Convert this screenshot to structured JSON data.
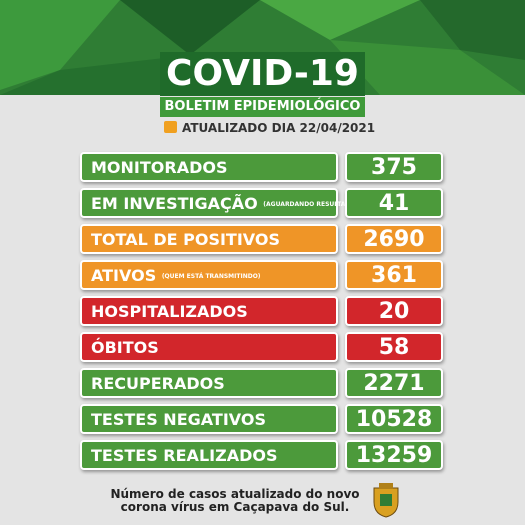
{
  "header": {
    "title": "COVID-19",
    "subtitle": "BOLETIM EPIDEMIOLÓGICO",
    "updated": "ATUALIZADO DIA 22/04/2021"
  },
  "rows": [
    {
      "label": "MONITORADOS",
      "value": 375,
      "color": "#4c9a3b"
    },
    {
      "label": "EM INVESTIGAÇÃO",
      "note": "(AGUARDANDO RESULTADO)",
      "value": 41,
      "color": "#4c9a3b"
    },
    {
      "label": "TOTAL DE POSITIVOS",
      "value": 2690,
      "color": "#ef9527"
    },
    {
      "label": "ATIVOS",
      "note": "(QUEM ESTÁ TRANSMITINDO)",
      "value": 361,
      "color": "#ef9527"
    },
    {
      "label": "HOSPITALIZADOS",
      "value": 20,
      "color": "#d2262b"
    },
    {
      "label": "ÓBITOS",
      "value": 58,
      "color": "#d2262b"
    },
    {
      "label": "RECUPERADOS",
      "value": 2271,
      "color": "#4c9a3b"
    },
    {
      "label": "TESTES NEGATIVOS",
      "value": 10528,
      "color": "#4c9a3b"
    },
    {
      "label": "TESTES REALIZADOS",
      "value": 13259,
      "color": "#4c9a3b"
    }
  ],
  "footer": {
    "lines": [
      "Número de casos atualizado do novo",
      "corona vírus em Caçapava do Sul."
    ]
  }
}
